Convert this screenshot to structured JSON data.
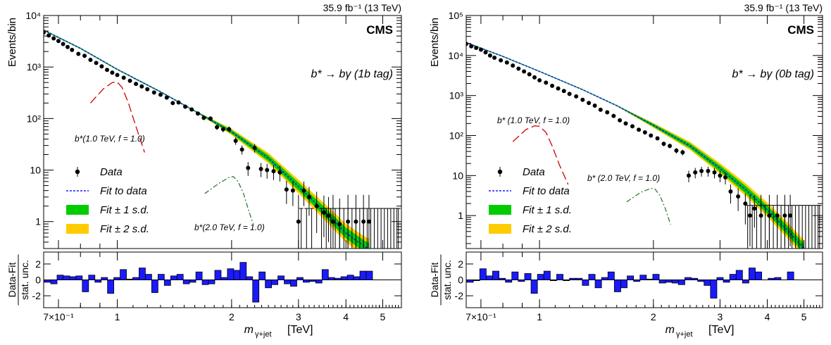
{
  "chart_data": [
    {
      "type": "scatter",
      "header": "35.9 fb⁻¹ (13 TeV)",
      "cms": "CMS",
      "process": "b* → bγ (1b tag)",
      "ylabel": "Events/bin",
      "xlabel": "mγ+jet [TeV]",
      "xlabel_main": "m",
      "xlabel_sub": "γ+jet",
      "xlabel_unit": "[TeV]",
      "ratio_ylabel_top": "Data-Fit",
      "ratio_ylabel_bottom": "stat. unc.",
      "log_x": true,
      "log_y": true,
      "xlim": [
        0.64,
        5.6
      ],
      "ylim": [
        0.3,
        10000
      ],
      "ratio_ylim": [
        -3.5,
        3.5
      ],
      "y_ticks": [
        "10⁴",
        "10³",
        "10²",
        "10",
        "1"
      ],
      "y_tick_values": [
        10000,
        1000,
        100,
        10,
        1
      ],
      "ratio_ticks": [
        "2",
        "0",
        "-2"
      ],
      "ratio_tick_values": [
        2,
        0,
        -2
      ],
      "x_ticks": [
        "7×10⁻¹",
        "1",
        "2",
        "3",
        "4",
        "5"
      ],
      "x_tick_values": [
        0.7,
        1,
        2,
        3,
        4,
        5
      ],
      "fit": {
        "x": [
          0.64,
          0.8,
          1.0,
          1.3,
          1.6,
          2.0,
          2.5,
          3.0,
          3.5,
          4.0,
          4.5,
          4.6
        ],
        "y": [
          5200,
          2300,
          900,
          330,
          140,
          55,
          17,
          4.8,
          1.6,
          0.6,
          0.32,
          0.3
        ]
      },
      "data": {
        "x": [
          0.64,
          0.66,
          0.68,
          0.7,
          0.72,
          0.74,
          0.76,
          0.79,
          0.82,
          0.85,
          0.88,
          0.91,
          0.94,
          0.97,
          1.0,
          1.04,
          1.08,
          1.12,
          1.16,
          1.2,
          1.25,
          1.3,
          1.35,
          1.4,
          1.45,
          1.51,
          1.57,
          1.63,
          1.69,
          1.76,
          1.83,
          1.9,
          1.97,
          2.05,
          2.13,
          2.21,
          2.3,
          2.39,
          2.48,
          2.58,
          2.68,
          2.79,
          2.9,
          3.0,
          3.1,
          3.2,
          3.35,
          3.5,
          3.6,
          3.7,
          3.85,
          4.05,
          4.25,
          4.45,
          4.6
        ],
        "y": [
          4700,
          4100,
          3600,
          3200,
          2800,
          2450,
          2150,
          1800,
          1650,
          1380,
          1200,
          1030,
          880,
          780,
          700,
          620,
          540,
          470,
          420,
          370,
          320,
          290,
          255,
          200,
          205,
          170,
          150,
          125,
          103,
          100,
          68,
          62,
          62,
          37,
          25,
          11,
          27,
          10.5,
          10,
          9.5,
          9,
          4.2,
          4,
          1,
          4,
          3,
          2,
          1.5,
          1.3,
          1,
          0.9,
          1,
          1,
          1,
          1
        ],
        "errors_low": [
          69,
          64,
          60,
          57,
          53,
          49,
          46,
          42,
          41,
          37,
          35,
          32,
          30,
          28,
          26,
          25,
          23,
          22,
          20,
          19,
          18,
          17,
          16,
          14,
          14,
          13,
          12,
          11,
          10,
          10,
          8,
          7.9,
          7.9,
          6.1,
          5,
          3.3,
          5.2,
          3.2,
          3.2,
          3.1,
          3.0,
          2.0,
          2.0,
          0.83,
          2.0,
          1.7,
          1.4,
          1.0,
          0.9,
          0.83,
          0.7,
          0.83,
          0.83,
          0.83,
          0.83
        ],
        "errors_high": [
          69,
          64,
          60,
          57,
          53,
          49,
          46,
          42,
          41,
          37,
          35,
          32,
          30,
          28,
          26,
          25,
          23,
          22,
          20,
          19,
          18,
          17,
          16,
          14,
          14,
          13,
          12,
          11,
          10,
          10,
          8,
          7.9,
          7.9,
          6.1,
          5,
          3.3,
          5.2,
          3.2,
          3.2,
          3.1,
          3.0,
          2.0,
          2.0,
          2.3,
          2.0,
          1.7,
          1.8,
          1.7,
          1.7,
          2.3,
          1.9,
          2.3,
          2.3,
          2.3,
          2.3
        ],
        "zero_bins_x": [
          3.05,
          3.15,
          3.25,
          3.45,
          3.55,
          3.65,
          3.75,
          3.85,
          3.95,
          4.05,
          4.15,
          4.25,
          4.35,
          4.45,
          4.55,
          4.65,
          4.75,
          4.85,
          4.95,
          5.05,
          5.15,
          5.25,
          5.35,
          5.45,
          5.5
        ],
        "zero_bins_upper": 1.8
      },
      "signals": [
        {
          "label": "b*(1.0 TeV, f = 1.0)",
          "color": "#cc0000",
          "style": "dash",
          "x": [
            0.85,
            0.92,
            0.97,
            1.0,
            1.03,
            1.07,
            1.12,
            1.18
          ],
          "y": [
            200,
            380,
            500,
            510,
            400,
            200,
            70,
            22
          ]
        },
        {
          "label": "b*(2.0 TeV, f = 1.0)",
          "color": "#2e7d32",
          "style": "dashdot",
          "x": [
            1.7,
            1.85,
            1.97,
            2.02,
            2.08,
            2.15,
            2.22,
            2.28
          ],
          "y": [
            3.5,
            5.5,
            7.2,
            7.5,
            6.0,
            3.5,
            1.6,
            0.9
          ]
        }
      ],
      "ratio": [
        -0.3,
        -0.5,
        0.6,
        0.5,
        0.4,
        0.5,
        -1.5,
        0.6,
        -0.3,
        0.3,
        -1.7,
        0.3,
        1.3,
        0.1,
        0.3,
        1.5,
        0.7,
        -1.6,
        0.7,
        -0.7,
        0.5,
        0.7,
        -0.5,
        -0.3,
        1.0,
        -0.6,
        -0.5,
        1.2,
        0.3,
        1.4,
        1.2,
        2.2,
        0.4,
        -2.8,
        1.0,
        -1.0,
        -0.6,
        0.5,
        -0.5,
        -0.8,
        0.3,
        -0.3,
        -0.2,
        -0.4,
        1.3,
        0.3,
        0.2,
        0.4,
        0.6,
        0.4,
        1.1,
        1.1
      ],
      "legend": [
        {
          "label": "Data",
          "kind": "marker"
        },
        {
          "label": "Fit to data",
          "kind": "line"
        },
        {
          "label": "Fit ± 1 s.d.",
          "kind": "box",
          "color": "#00cc00"
        },
        {
          "label": "Fit ± 2 s.d.",
          "kind": "box",
          "color": "#ffcc00"
        }
      ]
    },
    {
      "type": "scatter",
      "header": "35.9 fb⁻¹ (13 TeV)",
      "cms": "CMS",
      "process": "b* → bγ (0b tag)",
      "ylabel": "Events/bin",
      "xlabel": "mγ+jet [TeV]",
      "xlabel_main": "m",
      "xlabel_sub": "γ+jet",
      "xlabel_unit": "[TeV]",
      "ratio_ylabel_top": "Data-Fit",
      "ratio_ylabel_bottom": "stat. unc.",
      "log_x": true,
      "log_y": true,
      "xlim": [
        0.64,
        5.6
      ],
      "ylim": [
        0.15,
        100000
      ],
      "ratio_ylim": [
        -3.5,
        3.5
      ],
      "y_ticks": [
        "10⁵",
        "10⁴",
        "10³",
        "10²",
        "10",
        "1"
      ],
      "y_tick_values": [
        100000,
        10000,
        1000,
        100,
        10,
        1
      ],
      "ratio_ticks": [
        "2",
        "0",
        "-2"
      ],
      "ratio_tick_values": [
        2,
        0,
        -2
      ],
      "x_ticks": [
        "7×10⁻¹",
        "1",
        "2",
        "3",
        "4",
        "5"
      ],
      "x_tick_values": [
        0.7,
        1,
        2,
        3,
        4,
        5
      ],
      "fit": {
        "x": [
          0.64,
          0.8,
          1.0,
          1.3,
          1.6,
          2.0,
          2.5,
          3.0,
          3.5,
          4.0,
          4.5,
          5.0
        ],
        "y": [
          21000,
          9500,
          4000,
          1400,
          560,
          180,
          55,
          15,
          4.5,
          1.4,
          0.45,
          0.15
        ]
      },
      "data": {
        "x": [
          0.64,
          0.66,
          0.68,
          0.7,
          0.72,
          0.74,
          0.76,
          0.79,
          0.82,
          0.85,
          0.88,
          0.91,
          0.94,
          0.97,
          1.0,
          1.04,
          1.08,
          1.12,
          1.16,
          1.2,
          1.25,
          1.3,
          1.35,
          1.4,
          1.45,
          1.51,
          1.57,
          1.63,
          1.69,
          1.76,
          1.83,
          1.9,
          1.97,
          2.05,
          2.13,
          2.21,
          2.3,
          2.39,
          2.48,
          2.58,
          2.68,
          2.79,
          2.9,
          3.0,
          3.1,
          3.2,
          3.35,
          3.5,
          3.6,
          3.7,
          3.85,
          4.05,
          4.25,
          4.45,
          4.6
        ],
        "y": [
          19500,
          17000,
          15500,
          14000,
          12000,
          10000,
          8800,
          7600,
          6700,
          5600,
          4700,
          4000,
          3400,
          2850,
          2400,
          2100,
          1750,
          1500,
          1300,
          1100,
          950,
          780,
          650,
          560,
          440,
          380,
          310,
          240,
          200,
          170,
          140,
          120,
          100,
          85,
          62,
          55,
          42,
          38,
          10,
          12,
          13,
          13,
          12,
          10,
          9,
          4,
          3,
          2,
          1,
          1.5,
          1,
          1,
          1,
          1,
          1
        ],
        "errors_low": [
          140,
          130,
          125,
          118,
          110,
          100,
          94,
          87,
          82,
          75,
          69,
          63,
          58,
          53,
          49,
          46,
          42,
          39,
          36,
          33,
          31,
          28,
          25,
          24,
          21,
          19,
          18,
          15,
          14,
          13,
          12,
          11,
          10,
          9.2,
          7.9,
          7.4,
          6.5,
          6.2,
          3.2,
          3.5,
          3.6,
          3.6,
          3.5,
          3.2,
          3.0,
          2.0,
          1.7,
          1.4,
          0.83,
          1.0,
          0.83,
          0.83,
          0.83,
          0.83,
          0.83
        ],
        "errors_high": [
          140,
          130,
          125,
          118,
          110,
          100,
          94,
          87,
          82,
          75,
          69,
          63,
          58,
          53,
          49,
          46,
          42,
          39,
          36,
          33,
          31,
          28,
          25,
          24,
          21,
          19,
          18,
          15,
          14,
          13,
          12,
          11,
          10,
          9.2,
          7.9,
          7.4,
          6.5,
          6.2,
          3.2,
          3.5,
          3.6,
          3.6,
          3.5,
          3.2,
          3.0,
          2.0,
          1.8,
          1.6,
          2.3,
          1.7,
          2.3,
          2.3,
          2.3,
          2.3,
          2.3
        ],
        "zero_bins_x": [
          3.55,
          3.65,
          3.75,
          3.85,
          3.95,
          4.05,
          4.15,
          4.25,
          4.35,
          4.45,
          4.55,
          4.65,
          4.75,
          4.85,
          4.95,
          5.05,
          5.15,
          5.25,
          5.35,
          5.45,
          5.5
        ],
        "zero_bins_upper": 1.8
      },
      "signals": [
        {
          "label": "b* (1.0 TeV, f = 1.0)",
          "color": "#cc0000",
          "style": "dash",
          "x": [
            0.85,
            0.92,
            0.97,
            1.0,
            1.04,
            1.08,
            1.13,
            1.19
          ],
          "y": [
            70,
            140,
            175,
            170,
            120,
            55,
            18,
            6
          ]
        },
        {
          "label": "b* (2.0 TeV, f = 1.0)",
          "color": "#2e7d32",
          "style": "dashdot",
          "x": [
            1.7,
            1.85,
            1.97,
            2.02,
            2.08,
            2.15,
            2.22
          ],
          "y": [
            2.2,
            3.8,
            4.8,
            4.6,
            3.2,
            1.5,
            0.6
          ]
        }
      ],
      "ratio": [
        -0.3,
        -0.1,
        1.4,
        0.5,
        1.1,
        0.2,
        -0.3,
        1.0,
        -0.2,
        0.8,
        -1.7,
        0.7,
        1.1,
        -0.1,
        0.7,
        -0.1,
        0.2,
        0.2,
        -0.7,
        0.7,
        -1.0,
        0.3,
        1.0,
        -1.5,
        -1.0,
        0.5,
        -0.2,
        0.6,
        0.1,
        0.7,
        -0.4,
        -0.3,
        -0.4,
        -0.6,
        0.3,
        0.2,
        -0.2,
        -0.7,
        -2.3,
        0.3,
        -0.3,
        0.7,
        1.2,
        -0.4,
        1.5,
        1.0,
        0.0,
        0.2,
        0.3,
        0.0,
        1.0
      ],
      "legend": [
        {
          "label": "Data",
          "kind": "marker"
        },
        {
          "label": "Fit to data",
          "kind": "line"
        },
        {
          "label": "Fit ± 1 s.d.",
          "kind": "box",
          "color": "#00cc00"
        },
        {
          "label": "Fit ± 2 s.d.",
          "kind": "box",
          "color": "#ffcc00"
        }
      ]
    }
  ]
}
